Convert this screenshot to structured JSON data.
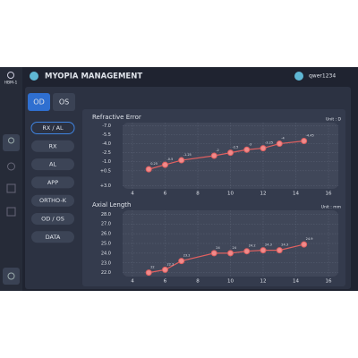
{
  "header": {
    "logo": "HBM-1",
    "title": "MYOPIA MANAGEMENT",
    "user": "qwer1234"
  },
  "eye_tabs": [
    "OD",
    "OS"
  ],
  "menu": [
    "RX / AL",
    "RX",
    "AL",
    "APP",
    "ORTHO-K",
    "OD / OS",
    "DATA"
  ],
  "chart_data": [
    {
      "type": "line",
      "title": "Refractive Error",
      "unit": "Unit : D",
      "x": [
        5,
        6,
        7,
        9,
        10,
        11,
        12,
        13,
        14.5
      ],
      "series": [
        {
          "color": "#e06060",
          "values": [
            0.25,
            -0.5,
            -1.25,
            -2,
            -2.5,
            -3,
            -3.25,
            -4,
            -4.45
          ]
        }
      ],
      "xlim": [
        3.4,
        16.6
      ],
      "xticks": [
        4,
        6,
        8,
        10,
        12,
        14,
        16
      ],
      "ylim": [
        -7.5,
        3.5
      ],
      "y_reversed": true,
      "yticks": [
        {
          "value": -7,
          "label": "-7.0"
        },
        {
          "value": -5.5,
          "label": "-5.5"
        },
        {
          "value": -4,
          "label": "-4.0"
        },
        {
          "value": -2.5,
          "label": "-2.5"
        },
        {
          "value": -1,
          "label": "-1.0"
        },
        {
          "value": 0.5,
          "label": "+0.5"
        },
        {
          "value": 3,
          "label": "+3.0"
        }
      ],
      "grid": true
    },
    {
      "type": "line",
      "title": "Axial Length",
      "unit": "Unit : mm",
      "x": [
        5,
        6,
        7,
        9,
        10,
        11,
        12,
        13,
        14.5
      ],
      "series": [
        {
          "color": "#e06060",
          "values": [
            22,
            22.3,
            23.2,
            24,
            24,
            24.2,
            24.3,
            24.3,
            24.9
          ]
        }
      ],
      "xlim": [
        3.4,
        16.6
      ],
      "xticks": [
        4,
        6,
        8,
        10,
        12,
        14,
        16
      ],
      "ylim": [
        21.6,
        28.4
      ],
      "y_reversed": false,
      "yticks": [
        {
          "value": 22,
          "label": "22.0"
        },
        {
          "value": 23,
          "label": "23.0"
        },
        {
          "value": 24,
          "label": "24.0"
        },
        {
          "value": 25,
          "label": "25.0"
        },
        {
          "value": 26,
          "label": "26.0"
        },
        {
          "value": 27,
          "label": "27.0"
        },
        {
          "value": 28,
          "label": "28.0"
        }
      ],
      "grid": true
    }
  ]
}
